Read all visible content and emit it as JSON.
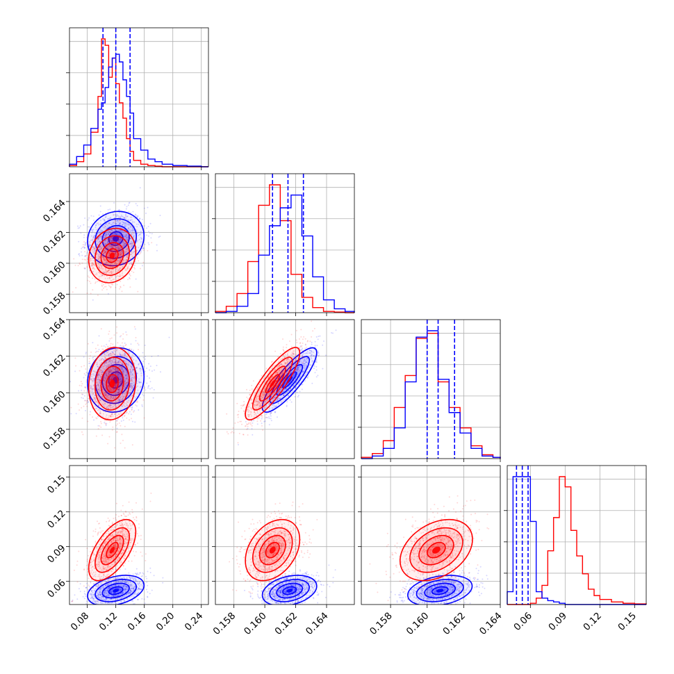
{
  "colors": {
    "red": "#ff0000",
    "blue": "#0000ff",
    "grid": "#b0b0b0"
  },
  "chart_data": {
    "type": "corner",
    "grid": true,
    "legend": "none",
    "n_params": 4,
    "series_colors": [
      "#ff0000",
      "#0000ff"
    ],
    "quantile_lines_color": "#0000ff",
    "params": [
      {
        "range": [
          0.055,
          0.25
        ],
        "xticks": [
          "0.08",
          "0.12",
          "0.16",
          "0.20",
          "0.24"
        ],
        "xtick_values": [
          0.08,
          0.12,
          0.16,
          0.2,
          0.24
        ],
        "quantiles": [
          0.102,
          0.12,
          0.14
        ],
        "hist": {
          "bins": [
            0.055,
            0.065,
            0.075,
            0.085,
            0.095,
            0.1,
            0.105,
            0.11,
            0.115,
            0.12,
            0.125,
            0.13,
            0.135,
            0.14,
            0.145,
            0.155,
            0.165,
            0.175,
            0.185,
            0.2,
            0.22,
            0.24,
            0.25
          ],
          "red": [
            0.01,
            0.04,
            0.1,
            0.27,
            0.55,
            1.0,
            0.95,
            0.7,
            0.85,
            0.65,
            0.5,
            0.38,
            0.22,
            0.12,
            0.05,
            0.02,
            0.01,
            0.005,
            0,
            0,
            0,
            0
          ],
          "blue": [
            0.02,
            0.08,
            0.17,
            0.3,
            0.45,
            0.5,
            0.62,
            0.78,
            0.85,
            0.88,
            0.82,
            0.68,
            0.55,
            0.42,
            0.22,
            0.13,
            0.06,
            0.04,
            0.02,
            0.01,
            0.005,
            0
          ]
        }
      },
      {
        "range": [
          0.1568,
          0.1658
        ],
        "xticks": [
          "0.158",
          "0.160",
          "0.162",
          "0.164"
        ],
        "xtick_values": [
          0.158,
          0.16,
          0.162,
          0.164
        ],
        "yticks": [
          "0.158",
          "0.160",
          "0.162",
          "0.164"
        ],
        "ytick_values": [
          0.158,
          0.16,
          0.162,
          0.164
        ],
        "quantiles": [
          0.1605,
          0.1615,
          0.1625
        ],
        "hist": {
          "bins": [
            0.1568,
            0.1575,
            0.1582,
            0.1589,
            0.1596,
            0.1603,
            0.161,
            0.1617,
            0.1624,
            0.1631,
            0.1638,
            0.1645,
            0.1652,
            0.1658
          ],
          "red": [
            0.01,
            0.05,
            0.15,
            0.4,
            0.84,
            1.0,
            0.72,
            0.3,
            0.12,
            0.04,
            0.01,
            0.005,
            0
          ],
          "blue": [
            0,
            0.01,
            0.05,
            0.15,
            0.45,
            0.68,
            0.82,
            0.92,
            0.6,
            0.28,
            0.1,
            0.03,
            0.01
          ]
        }
      },
      {
        "range": [
          0.1564,
          0.164
        ],
        "xticks": [
          "0.158",
          "0.160",
          "0.162",
          "0.164"
        ],
        "xtick_values": [
          0.158,
          0.16,
          0.162,
          0.164
        ],
        "yticks": [
          "0.158",
          "0.160",
          "0.162",
          "0.164"
        ],
        "ytick_values": [
          0.158,
          0.16,
          0.162,
          0.164
        ],
        "quantiles": [
          0.16,
          0.1606,
          0.1615
        ],
        "hist": {
          "bins": [
            0.1564,
            0.157,
            0.1576,
            0.1582,
            0.1588,
            0.1594,
            0.16,
            0.1606,
            0.1612,
            0.1618,
            0.1624,
            0.163,
            0.1636,
            0.164
          ],
          "red": [
            0.01,
            0.04,
            0.14,
            0.4,
            0.65,
            0.94,
            0.98,
            0.6,
            0.4,
            0.24,
            0.1,
            0.03,
            0.01
          ],
          "blue": [
            0,
            0.02,
            0.08,
            0.24,
            0.6,
            0.95,
            1.0,
            0.62,
            0.36,
            0.2,
            0.08,
            0.02,
            0.01
          ]
        }
      },
      {
        "range": [
          0.04,
          0.16
        ],
        "xticks": [
          "0.06",
          "0.09",
          "0.12",
          "0.15"
        ],
        "xtick_values": [
          0.06,
          0.09,
          0.12,
          0.15
        ],
        "yticks": [
          "0.06",
          "0.09",
          "0.12",
          "0.15"
        ],
        "ytick_values": [
          0.06,
          0.09,
          0.12,
          0.15
        ],
        "quantiles": [
          0.048,
          0.053,
          0.058
        ],
        "hist": {
          "bins": [
            0.04,
            0.045,
            0.05,
            0.055,
            0.06,
            0.065,
            0.07,
            0.075,
            0.08,
            0.085,
            0.09,
            0.095,
            0.1,
            0.105,
            0.11,
            0.115,
            0.12,
            0.13,
            0.14,
            0.15,
            0.16
          ],
          "red": [
            0,
            0,
            0,
            0,
            0.01,
            0.05,
            0.15,
            0.42,
            0.68,
            1.0,
            0.92,
            0.58,
            0.38,
            0.24,
            0.12,
            0.07,
            0.04,
            0.02,
            0.01,
            0.005
          ],
          "blue": [
            0.1,
            1.0,
            1.0,
            1.0,
            0.65,
            0.1,
            0.05,
            0.03,
            0.02,
            0.01,
            0,
            0,
            0,
            0,
            0,
            0,
            0,
            0,
            0,
            0
          ]
        }
      }
    ],
    "distributions": {
      "red": {
        "mean": [
          0.115,
          0.1605,
          0.1605,
          0.087
        ],
        "std": [
          0.015,
          0.0008,
          0.0009,
          0.012
        ],
        "corr": [
          [
            0,
            1,
            0.15
          ],
          [
            0,
            2,
            0.1
          ],
          [
            1,
            2,
            0.85
          ],
          [
            0,
            3,
            0.6
          ],
          [
            1,
            3,
            0.35
          ],
          [
            2,
            3,
            0.35
          ]
        ]
      },
      "blue": {
        "mean": [
          0.12,
          0.1616,
          0.1607,
          0.052
        ],
        "std": [
          0.018,
          0.0008,
          0.0008,
          0.006
        ],
        "corr": [
          [
            0,
            1,
            0.1
          ],
          [
            0,
            2,
            0.1
          ],
          [
            1,
            2,
            0.85
          ],
          [
            0,
            3,
            0.35
          ],
          [
            1,
            3,
            0.3
          ],
          [
            2,
            3,
            0.3
          ]
        ]
      }
    }
  }
}
